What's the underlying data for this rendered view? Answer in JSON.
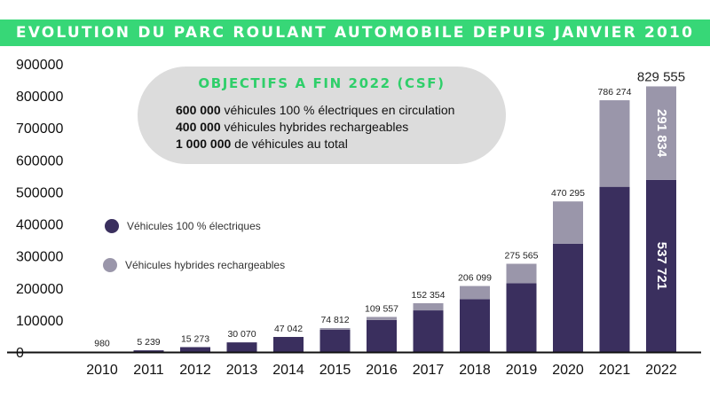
{
  "title": "EVOLUTION DU PARC ROULANT AUTOMOBILE DEPUIS JANVIER 2010",
  "objectives": {
    "title": "OBJECTIFS A FIN 2022 (CSF)",
    "lines": [
      {
        "value": "600 000",
        "text": " véhicules 100 % électriques en circulation"
      },
      {
        "value": "400 000",
        "text": " véhicules hybrides rechargeables"
      },
      {
        "value": "1 000 000",
        "text": " de véhicules au total"
      }
    ]
  },
  "colors": {
    "accent": "#37d777",
    "electric": "#3a2f5e",
    "hybrid": "#9a96aa"
  },
  "chart_data": {
    "type": "bar",
    "stacked": true,
    "categories": [
      "2010",
      "2011",
      "2012",
      "2013",
      "2014",
      "2015",
      "2016",
      "2017",
      "2018",
      "2019",
      "2020",
      "2021",
      "2022"
    ],
    "series": [
      {
        "name": "Véhicules 100 % électriques",
        "color": "#3a2f5e",
        "values": [
          980,
          5239,
          15273,
          30070,
          47042,
          70000,
          100000,
          130000,
          165000,
          215000,
          338000,
          516000,
          537721
        ]
      },
      {
        "name": "Véhicules hybrides rechargeables",
        "color": "#9a96aa",
        "values": [
          0,
          0,
          0,
          0,
          0,
          4812,
          9557,
          22354,
          41099,
          60565,
          132295,
          270274,
          291834
        ]
      }
    ],
    "totals": [
      980,
      5239,
      15273,
      30070,
      47042,
      74812,
      109557,
      152354,
      206099,
      275565,
      470295,
      786274,
      829555
    ],
    "total_labels": [
      "980",
      "5 239",
      "15 273",
      "30 070",
      "47 042",
      "74 812",
      "109 557",
      "152 354",
      "206 099",
      "275 565",
      "470 295",
      "786 274",
      "829 555"
    ],
    "inner_labels": {
      "category": "2022",
      "electric": "537 721",
      "hybrid": "291 834"
    },
    "y_ticks": [
      "0",
      "100000",
      "200000",
      "300000",
      "400000",
      "500000",
      "600000",
      "700000",
      "800000",
      "900000"
    ],
    "ylim": [
      0,
      900000
    ],
    "legend_position": "left",
    "grid": false
  }
}
